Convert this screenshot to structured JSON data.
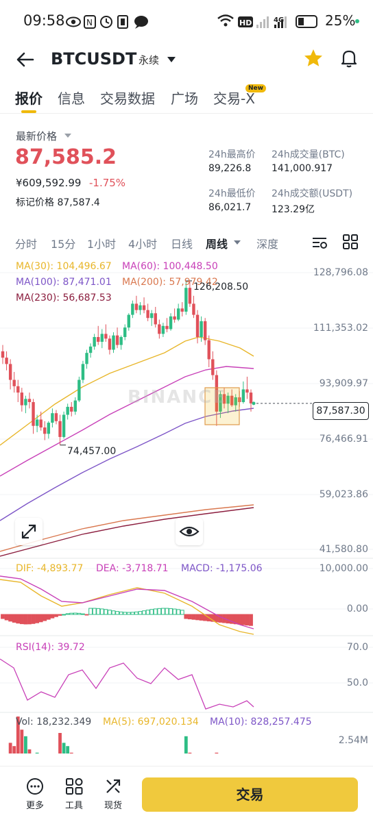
{
  "status": {
    "time": "09:58",
    "battery": "25%"
  },
  "header": {
    "symbol": "BTCUSDT",
    "contract_type": "永续"
  },
  "tabs": [
    {
      "label": "报价"
    },
    {
      "label": "信息"
    },
    {
      "label": "交易数据"
    },
    {
      "label": "广场"
    },
    {
      "label": "交易-X"
    }
  ],
  "new_badge": "New",
  "price": {
    "last_label": "最新价格",
    "last": "87,585.2",
    "cny": "¥609,592.99",
    "change": "-1.75%",
    "mark_label": "标记价格",
    "mark": "87,587.4"
  },
  "stats": {
    "high_label": "24h最高价",
    "high": "89,226.8",
    "vol_btc_label": "24h成交量(BTC)",
    "vol_btc": "141,000.917",
    "low_label": "24h最低价",
    "low": "86,021.7",
    "vol_usdt_label": "24h成交额(USDT)",
    "vol_usdt": "123.29亿"
  },
  "intervals": [
    {
      "label": "分时"
    },
    {
      "label": "15分"
    },
    {
      "label": "1小时"
    },
    {
      "label": "4小时"
    },
    {
      "label": "日线"
    },
    {
      "label": "周线"
    },
    {
      "label": "深度"
    }
  ],
  "ma_legend": {
    "ma30": "MA(30): 104,496.67",
    "ma60": "MA(60): 100,448.50",
    "ma100": "MA(100): 87,471.01",
    "ma200": "MA(200): 57,979.42",
    "ma230": "MA(230): 56,687.53"
  },
  "price_axis": [
    "128,796.08",
    "111,353.02",
    "93,909.97",
    "76,466.91",
    "59,023.86",
    "41,580.80"
  ],
  "annotations": {
    "high": "126,208.50",
    "low": "74,457.00",
    "current": "87,587.30"
  },
  "watermark": "BINANCE",
  "macd": {
    "dif": "DIF: -4,893.77",
    "dea": "DEA: -3,718.71",
    "macd": "MACD: -1,175.06",
    "axis": [
      "10,000.00",
      "0.00"
    ]
  },
  "rsi": {
    "label": "RSI(14): 39.72",
    "axis": [
      "70.0",
      "50.0"
    ]
  },
  "volume": {
    "vol": "Vol: 18,232.349",
    "ma5": "MA(5): 697,020.134",
    "ma10": "MA(10): 828,257.475",
    "axis": "2.54M"
  },
  "bottom": {
    "more": "更多",
    "tools": "工具",
    "spot": "现货",
    "trade": "交易"
  },
  "colors": {
    "up": "#2ebd85",
    "down": "#e0515a",
    "accent": "#f0b90b",
    "ma30": "#e8b62a",
    "ma60": "#c840b8",
    "ma100": "#7d55c7",
    "ma200": "#d9774e",
    "ma230": "#8b1d3e"
  },
  "chart_data": {
    "type": "candlestick",
    "price_axis": [
      128796.08,
      111353.02,
      93909.97,
      76466.91,
      59023.86,
      41580.8
    ],
    "last": 87587.3,
    "annotated_high": 126208.5,
    "annotated_low": 74457.0,
    "ohlc": [
      [
        104000,
        106000,
        100000,
        102000
      ],
      [
        102000,
        104000,
        98000,
        100000
      ],
      [
        100000,
        101500,
        92000,
        95000
      ],
      [
        95000,
        97500,
        91000,
        93000
      ],
      [
        93000,
        95000,
        88000,
        91000
      ],
      [
        91000,
        92500,
        85000,
        87000
      ],
      [
        87000,
        90000,
        84500,
        89000
      ],
      [
        89000,
        91000,
        86000,
        88000
      ],
      [
        88000,
        89000,
        78000,
        80500
      ],
      [
        80500,
        84000,
        78500,
        82500
      ],
      [
        82500,
        85000,
        79000,
        80000
      ],
      [
        80000,
        82000,
        76000,
        78000
      ],
      [
        78000,
        82000,
        76500,
        81500
      ],
      [
        81500,
        86000,
        80000,
        84500
      ],
      [
        84500,
        85500,
        81000,
        82000
      ],
      [
        82000,
        84000,
        74457,
        77000
      ],
      [
        77000,
        85000,
        76500,
        84000
      ],
      [
        84000,
        87500,
        82500,
        86500
      ],
      [
        86500,
        88000,
        83500,
        85000
      ],
      [
        85000,
        89500,
        84000,
        88500
      ],
      [
        88500,
        96000,
        88000,
        95000
      ],
      [
        95000,
        101000,
        94000,
        100000
      ],
      [
        100000,
        104500,
        98500,
        103500
      ],
      [
        103500,
        106500,
        102000,
        105500
      ],
      [
        105500,
        109500,
        104500,
        108500
      ],
      [
        108500,
        112000,
        106000,
        107000
      ],
      [
        107000,
        111000,
        105000,
        109500
      ],
      [
        109500,
        112500,
        107000,
        108000
      ],
      [
        108000,
        109000,
        103000,
        104500
      ],
      [
        104500,
        110000,
        103500,
        109000
      ],
      [
        109000,
        111500,
        105000,
        106000
      ],
      [
        106000,
        109000,
        104500,
        108500
      ],
      [
        108500,
        112500,
        107500,
        111500
      ],
      [
        111500,
        116000,
        110500,
        115500
      ],
      [
        115500,
        120000,
        114500,
        119000
      ],
      [
        119000,
        121500,
        116000,
        117000
      ],
      [
        117000,
        119500,
        115500,
        118500
      ],
      [
        118500,
        121000,
        116000,
        117000
      ],
      [
        117000,
        119000,
        113500,
        114500
      ],
      [
        114500,
        117000,
        112000,
        116000
      ],
      [
        116000,
        118000,
        111500,
        112500
      ],
      [
        112500,
        114000,
        108000,
        109500
      ],
      [
        109500,
        113000,
        108500,
        112000
      ],
      [
        112000,
        114500,
        110000,
        111000
      ],
      [
        111000,
        116000,
        110500,
        115000
      ],
      [
        115000,
        117500,
        113000,
        114000
      ],
      [
        114000,
        119000,
        113500,
        117500
      ],
      [
        117500,
        119500,
        115000,
        116500
      ],
      [
        116500,
        126208.5,
        115500,
        124000
      ],
      [
        124000,
        126000,
        118000,
        119000
      ],
      [
        119000,
        121500,
        114500,
        115500
      ],
      [
        115500,
        117000,
        106500,
        108500
      ],
      [
        108500,
        115000,
        107000,
        113500
      ],
      [
        113500,
        114500,
        106000,
        107500
      ],
      [
        107500,
        109000,
        99000,
        101500
      ],
      [
        101500,
        104000,
        95000,
        96500
      ],
      [
        96500,
        98000,
        80500,
        85000
      ],
      [
        85000,
        91500,
        83000,
        90500
      ],
      [
        90500,
        92500,
        86000,
        87500
      ],
      [
        87500,
        91000,
        84500,
        90000
      ],
      [
        90000,
        92000,
        86500,
        87000
      ],
      [
        87000,
        90500,
        85000,
        89500
      ],
      [
        89500,
        91500,
        86500,
        88000
      ],
      [
        88000,
        94500,
        87500,
        92000
      ],
      [
        92000,
        96000,
        89000,
        91000
      ],
      [
        91000,
        92000,
        85000,
        87585.2
      ]
    ]
  }
}
